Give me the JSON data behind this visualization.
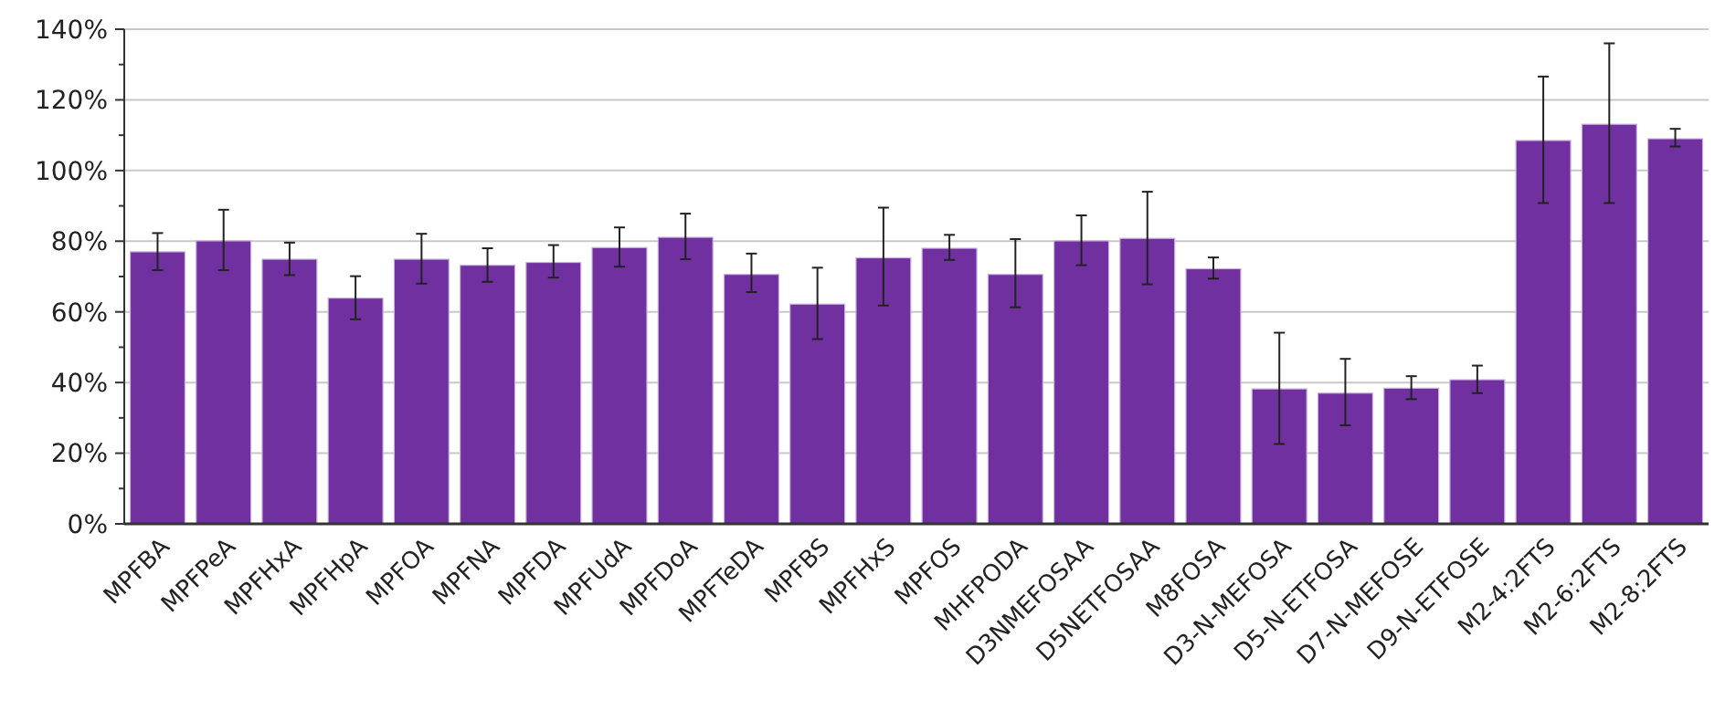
{
  "chart_data": {
    "type": "bar",
    "categories": [
      "MPFBA",
      "MPFPeA",
      "MPFHxA",
      "MPFHpA",
      "MPFOA",
      "MPFNA",
      "MPFDA",
      "MPFUdA",
      "MPFDoA",
      "MPFTeDA",
      "MPFBS",
      "MPFHxS",
      "MPFOS",
      "MHFPODA",
      "D3NMEFOSAA",
      "D5NETFOSAA",
      "M8FOSA",
      "D3-N-MEFOSA",
      "D5-N-ETFOSA",
      "D7-N-MEFOSE",
      "D9-N-ETFOSE",
      "M2-4:2FTS",
      "M2-6:2FTS",
      "M2-8:2FTS"
    ],
    "values": [
      77.0,
      80.1,
      74.9,
      63.9,
      74.9,
      73.2,
      74.0,
      78.2,
      81.1,
      70.6,
      62.2,
      75.3,
      78.0,
      70.6,
      80.1,
      80.8,
      72.2,
      38.2,
      37.0,
      38.4,
      40.8,
      108.5,
      113.1,
      109.0
    ],
    "errors": [
      [
        71.8,
        82.3
      ],
      [
        71.8,
        88.9
      ],
      [
        70.4,
        79.6
      ],
      [
        57.9,
        70.1
      ],
      [
        68.0,
        82.1
      ],
      [
        68.5,
        78.0
      ],
      [
        69.7,
        78.9
      ],
      [
        72.8,
        83.9
      ],
      [
        74.9,
        87.8
      ],
      [
        65.6,
        76.5
      ],
      [
        52.3,
        72.5
      ],
      [
        61.8,
        89.5
      ],
      [
        74.7,
        81.8
      ],
      [
        61.3,
        80.6
      ],
      [
        73.2,
        87.3
      ],
      [
        67.8,
        94.0
      ],
      [
        69.4,
        75.4
      ],
      [
        22.6,
        54.1
      ],
      [
        27.9,
        46.7
      ],
      [
        35.3,
        41.8
      ],
      [
        37.0,
        44.8
      ],
      [
        90.8,
        126.6
      ],
      [
        90.8,
        136.0
      ],
      [
        106.8,
        111.8
      ]
    ],
    "color": "#7030a0",
    "ylim": [
      0,
      140
    ],
    "yticks": [
      {
        "value": 0,
        "label": "0%"
      },
      {
        "value": 10,
        "label": null
      },
      {
        "value": 20,
        "label": "20%"
      },
      {
        "value": 30,
        "label": null
      },
      {
        "value": 40,
        "label": "40%"
      },
      {
        "value": 50,
        "label": null
      },
      {
        "value": 60,
        "label": "60%"
      },
      {
        "value": 70,
        "label": null
      },
      {
        "value": 80,
        "label": "80%"
      },
      {
        "value": 90,
        "label": null
      },
      {
        "value": 100,
        "label": "100%"
      },
      {
        "value": 110,
        "label": null
      },
      {
        "value": 120,
        "label": "120%"
      },
      {
        "value": 130,
        "label": null
      },
      {
        "value": 140,
        "label": "140%"
      }
    ],
    "grid": true
  }
}
